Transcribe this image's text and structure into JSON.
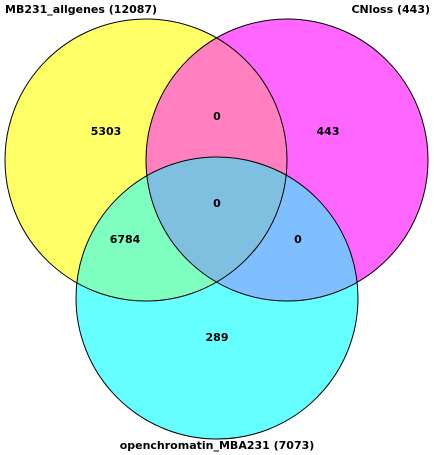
{
  "venn": {
    "sets": [
      {
        "name": "MB231_allgenes (12087)",
        "color": "#ffff66"
      },
      {
        "name": "CNloss (443)",
        "color": "#ff66ff"
      },
      {
        "name": "openchromatin_MBA231 (7073)",
        "color": "#66ffff"
      }
    ],
    "regions": {
      "a_only": "5303",
      "b_only": "443",
      "c_only": "289",
      "ab_only": "0",
      "ac_only": "6784",
      "bc_only": "0",
      "abc": "0"
    },
    "region_colors": {
      "a_only": "#ffff66",
      "b_only": "#ff66ff",
      "c_only": "#66ffff",
      "ab_only": "#ff7fbf",
      "ac_only": "#7fffbf",
      "bc_only": "#7fbfff",
      "abc": "#7fbfdf"
    }
  }
}
